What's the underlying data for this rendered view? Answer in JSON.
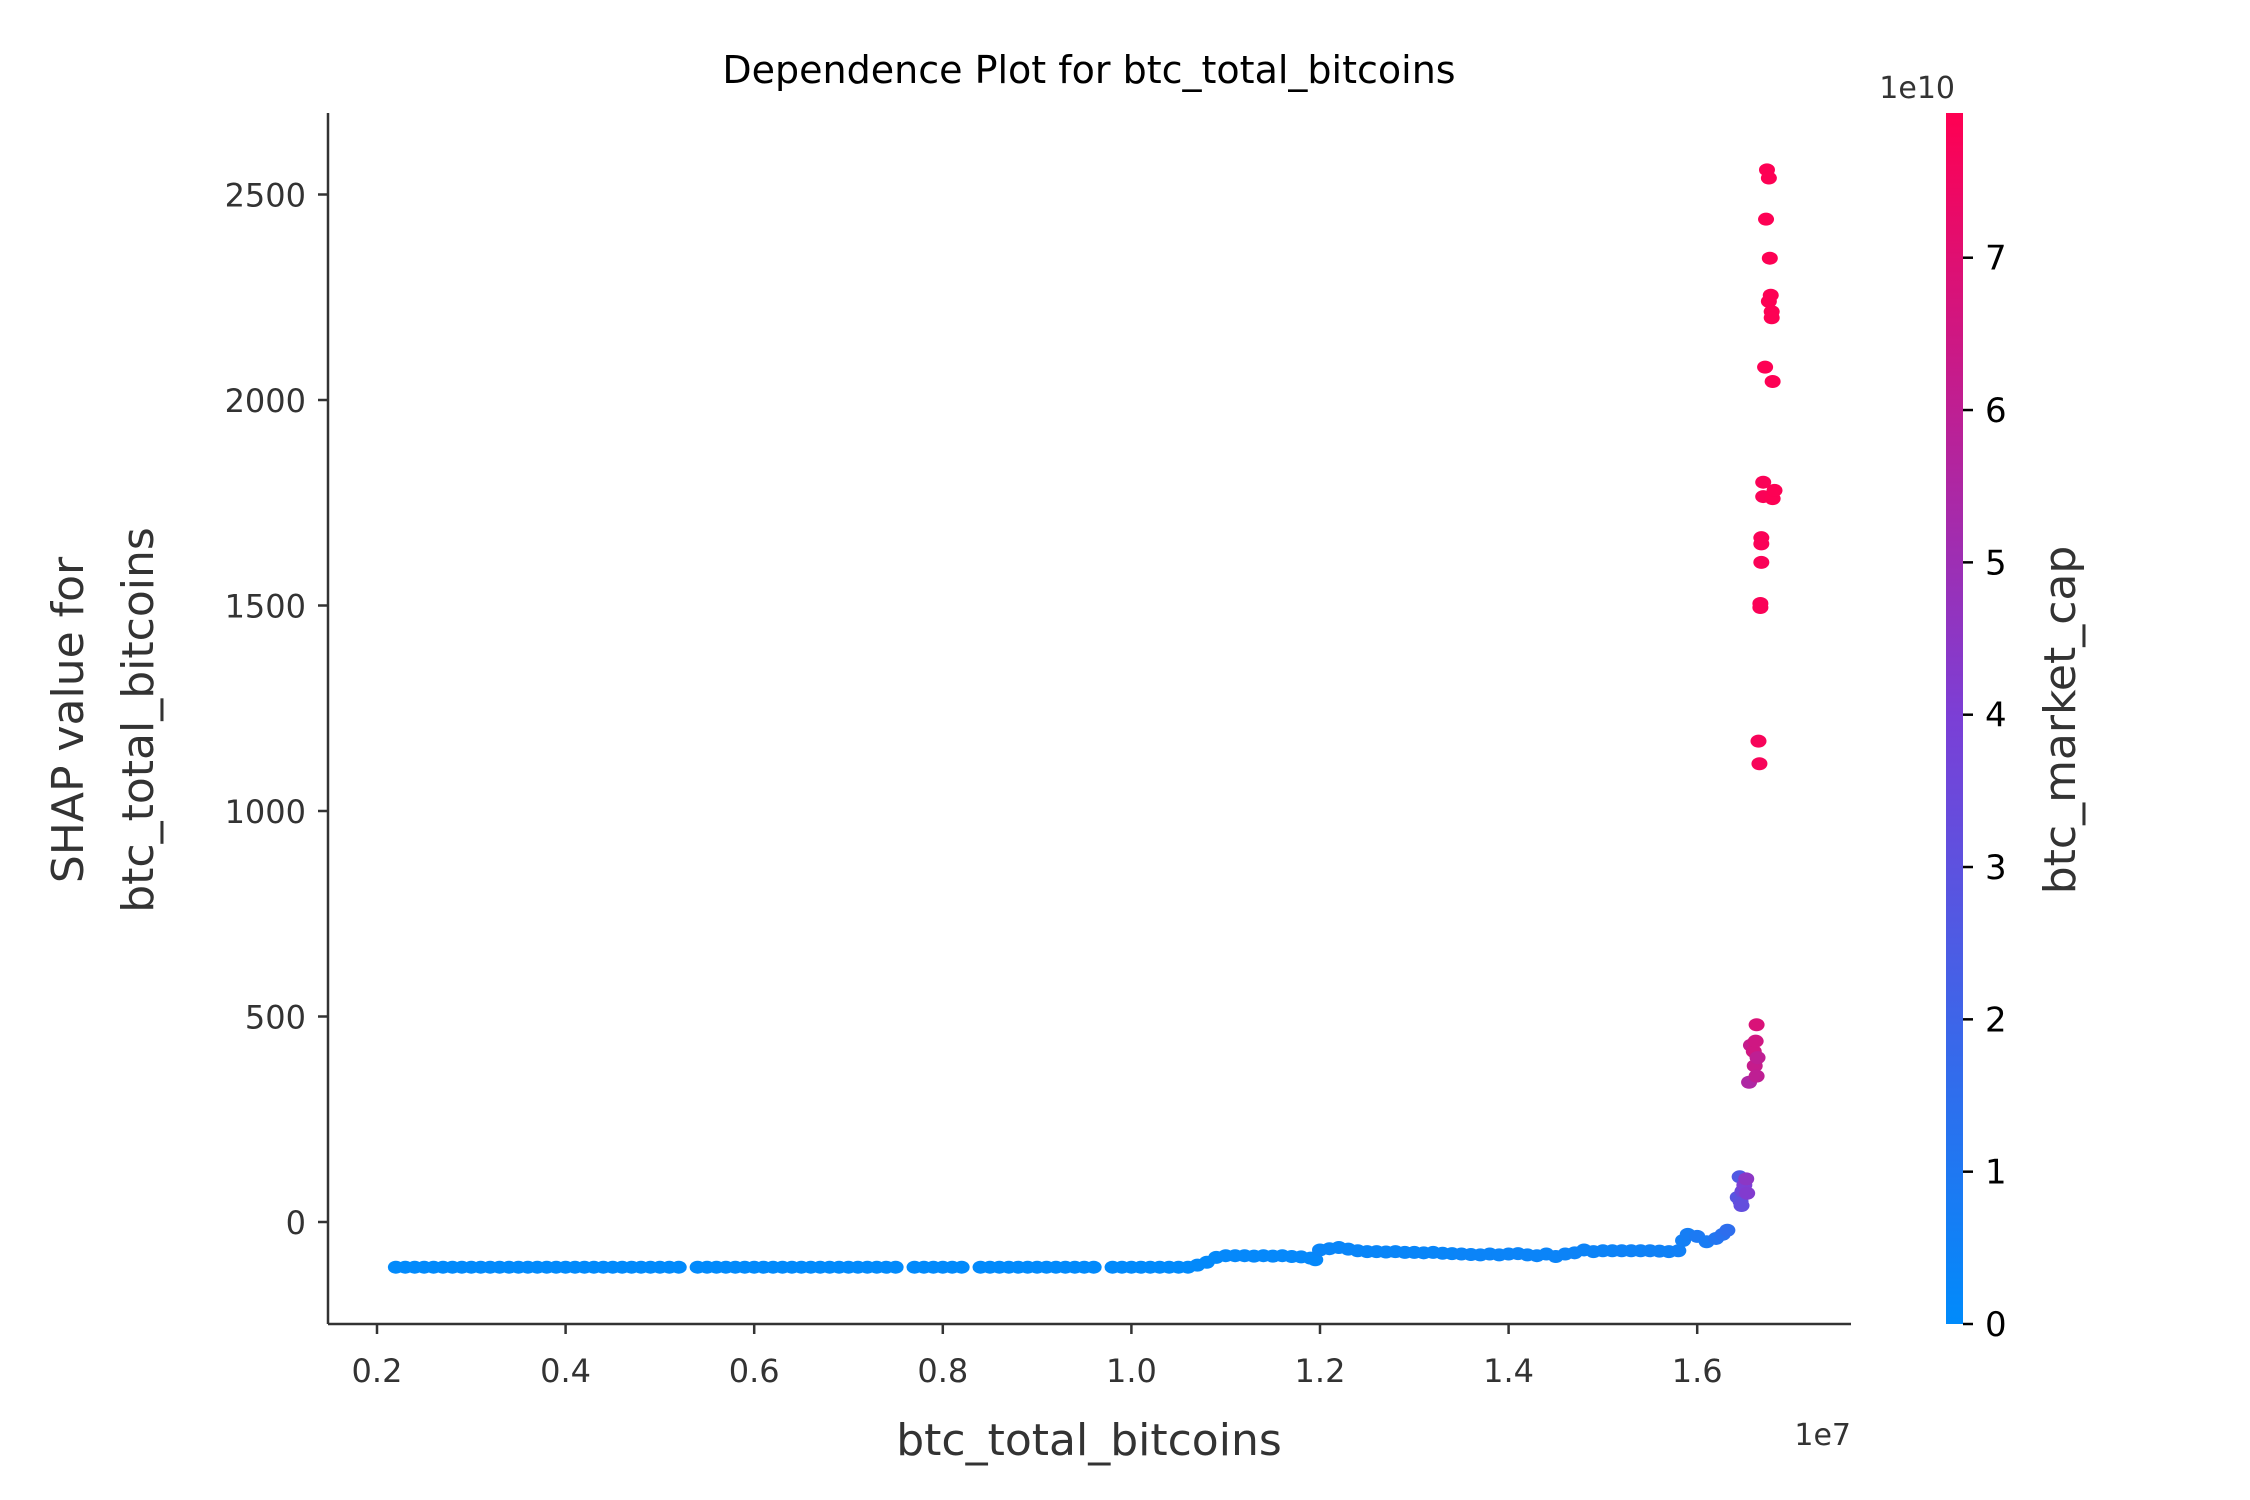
{
  "chart_data": {
    "type": "scatter",
    "title": "Dependence Plot for btc_total_bitcoins",
    "xlabel": "btc_total_bitcoins",
    "ylabel_line1": "SHAP value for",
    "ylabel_line2": "btc_total_bitcoins",
    "x_offset_label": "1e7",
    "xlim": [
      0.15,
      1.76
    ],
    "ylim": [
      -250,
      2700
    ],
    "xticks": [
      0.2,
      0.4,
      0.6,
      0.8,
      1.0,
      1.2,
      1.4,
      1.6
    ],
    "xtick_labels": [
      "0.2",
      "0.4",
      "0.6",
      "0.8",
      "1.0",
      "1.2",
      "1.4",
      "1.6"
    ],
    "yticks": [
      0,
      500,
      1000,
      1500,
      2000,
      2500
    ],
    "ytick_labels": [
      "0",
      "500",
      "1000",
      "1500",
      "2000",
      "2500"
    ],
    "colorbar": {
      "label": "btc_market_cap",
      "offset_label": "1e10",
      "range": [
        0,
        7.95
      ],
      "ticks": [
        0,
        1,
        2,
        3,
        4,
        5,
        6,
        7
      ],
      "tick_labels": [
        "0",
        "1",
        "2",
        "3",
        "4",
        "5",
        "6",
        "7"
      ],
      "colors": [
        "#008bfb",
        "#7b3fd6",
        "#ff0052"
      ]
    },
    "point_format": "[x (1e7), shap_value, btc_market_cap (1e10)]",
    "points": [
      [
        0.22,
        -110,
        0.05
      ],
      [
        0.23,
        -110,
        0.05
      ],
      [
        0.24,
        -110,
        0.05
      ],
      [
        0.25,
        -110,
        0.05
      ],
      [
        0.26,
        -110,
        0.05
      ],
      [
        0.27,
        -110,
        0.05
      ],
      [
        0.28,
        -110,
        0.05
      ],
      [
        0.29,
        -110,
        0.05
      ],
      [
        0.3,
        -110,
        0.05
      ],
      [
        0.31,
        -110,
        0.05
      ],
      [
        0.32,
        -110,
        0.05
      ],
      [
        0.33,
        -110,
        0.05
      ],
      [
        0.34,
        -110,
        0.05
      ],
      [
        0.35,
        -110,
        0.05
      ],
      [
        0.36,
        -110,
        0.05
      ],
      [
        0.37,
        -110,
        0.05
      ],
      [
        0.38,
        -110,
        0.05
      ],
      [
        0.39,
        -110,
        0.05
      ],
      [
        0.4,
        -110,
        0.05
      ],
      [
        0.41,
        -110,
        0.05
      ],
      [
        0.42,
        -110,
        0.05
      ],
      [
        0.43,
        -110,
        0.05
      ],
      [
        0.44,
        -110,
        0.05
      ],
      [
        0.45,
        -110,
        0.05
      ],
      [
        0.46,
        -110,
        0.05
      ],
      [
        0.47,
        -110,
        0.05
      ],
      [
        0.48,
        -110,
        0.05
      ],
      [
        0.49,
        -110,
        0.05
      ],
      [
        0.5,
        -110,
        0.05
      ],
      [
        0.51,
        -110,
        0.05
      ],
      [
        0.52,
        -110,
        0.05
      ],
      [
        0.54,
        -110,
        0.05
      ],
      [
        0.55,
        -110,
        0.05
      ],
      [
        0.56,
        -110,
        0.05
      ],
      [
        0.57,
        -110,
        0.05
      ],
      [
        0.58,
        -110,
        0.05
      ],
      [
        0.59,
        -110,
        0.05
      ],
      [
        0.6,
        -110,
        0.05
      ],
      [
        0.61,
        -110,
        0.05
      ],
      [
        0.62,
        -110,
        0.05
      ],
      [
        0.63,
        -110,
        0.05
      ],
      [
        0.64,
        -110,
        0.05
      ],
      [
        0.65,
        -110,
        0.05
      ],
      [
        0.66,
        -110,
        0.05
      ],
      [
        0.67,
        -110,
        0.05
      ],
      [
        0.68,
        -110,
        0.05
      ],
      [
        0.69,
        -110,
        0.05
      ],
      [
        0.7,
        -110,
        0.05
      ],
      [
        0.71,
        -110,
        0.05
      ],
      [
        0.72,
        -110,
        0.05
      ],
      [
        0.73,
        -110,
        0.05
      ],
      [
        0.74,
        -110,
        0.05
      ],
      [
        0.75,
        -110,
        0.05
      ],
      [
        0.77,
        -110,
        0.05
      ],
      [
        0.78,
        -110,
        0.05
      ],
      [
        0.79,
        -110,
        0.05
      ],
      [
        0.8,
        -110,
        0.05
      ],
      [
        0.81,
        -110,
        0.05
      ],
      [
        0.82,
        -110,
        0.05
      ],
      [
        0.84,
        -110,
        0.05
      ],
      [
        0.85,
        -110,
        0.05
      ],
      [
        0.86,
        -110,
        0.05
      ],
      [
        0.87,
        -110,
        0.05
      ],
      [
        0.88,
        -110,
        0.05
      ],
      [
        0.89,
        -110,
        0.05
      ],
      [
        0.9,
        -110,
        0.05
      ],
      [
        0.91,
        -110,
        0.05
      ],
      [
        0.92,
        -110,
        0.05
      ],
      [
        0.93,
        -110,
        0.05
      ],
      [
        0.94,
        -110,
        0.05
      ],
      [
        0.95,
        -110,
        0.05
      ],
      [
        0.96,
        -110,
        0.05
      ],
      [
        0.98,
        -110,
        0.05
      ],
      [
        0.99,
        -110,
        0.05
      ],
      [
        1.0,
        -110,
        0.05
      ],
      [
        1.01,
        -110,
        0.05
      ],
      [
        1.02,
        -110,
        0.05
      ],
      [
        1.03,
        -110,
        0.05
      ],
      [
        1.04,
        -110,
        0.05
      ],
      [
        1.05,
        -110,
        0.05
      ],
      [
        1.06,
        -110,
        0.05
      ],
      [
        1.07,
        -105,
        0.1
      ],
      [
        1.08,
        -98,
        0.1
      ],
      [
        1.09,
        -86,
        0.1
      ],
      [
        1.1,
        -82,
        0.15
      ],
      [
        1.11,
        -82,
        0.15
      ],
      [
        1.12,
        -82,
        0.15
      ],
      [
        1.13,
        -83,
        0.15
      ],
      [
        1.14,
        -82,
        0.15
      ],
      [
        1.15,
        -83,
        0.15
      ],
      [
        1.16,
        -82,
        0.15
      ],
      [
        1.17,
        -84,
        0.15
      ],
      [
        1.18,
        -85,
        0.15
      ],
      [
        1.19,
        -88,
        0.15
      ],
      [
        1.195,
        -92,
        0.15
      ],
      [
        1.2,
        -68,
        0.3
      ],
      [
        1.21,
        -65,
        0.3
      ],
      [
        1.22,
        -62,
        0.3
      ],
      [
        1.23,
        -66,
        0.3
      ],
      [
        1.24,
        -70,
        0.3
      ],
      [
        1.25,
        -72,
        0.3
      ],
      [
        1.26,
        -72,
        0.3
      ],
      [
        1.27,
        -73,
        0.3
      ],
      [
        1.28,
        -72,
        0.3
      ],
      [
        1.29,
        -74,
        0.3
      ],
      [
        1.3,
        -74,
        0.3
      ],
      [
        1.31,
        -75,
        0.3
      ],
      [
        1.32,
        -74,
        0.3
      ],
      [
        1.33,
        -76,
        0.3
      ],
      [
        1.34,
        -77,
        0.3
      ],
      [
        1.35,
        -78,
        0.35
      ],
      [
        1.36,
        -79,
        0.35
      ],
      [
        1.37,
        -80,
        0.35
      ],
      [
        1.38,
        -78,
        0.35
      ],
      [
        1.39,
        -80,
        0.35
      ],
      [
        1.4,
        -78,
        0.35
      ],
      [
        1.41,
        -77,
        0.35
      ],
      [
        1.42,
        -80,
        0.35
      ],
      [
        1.43,
        -82,
        0.35
      ],
      [
        1.44,
        -78,
        0.35
      ],
      [
        1.45,
        -84,
        0.35
      ],
      [
        1.46,
        -78,
        0.4
      ],
      [
        1.47,
        -75,
        0.4
      ],
      [
        1.48,
        -68,
        0.4
      ],
      [
        1.49,
        -72,
        0.4
      ],
      [
        1.5,
        -70,
        0.4
      ],
      [
        1.51,
        -70,
        0.4
      ],
      [
        1.52,
        -70,
        0.45
      ],
      [
        1.53,
        -70,
        0.45
      ],
      [
        1.54,
        -70,
        0.45
      ],
      [
        1.55,
        -70,
        0.5
      ],
      [
        1.56,
        -71,
        0.5
      ],
      [
        1.57,
        -72,
        0.5
      ],
      [
        1.58,
        -70,
        0.55
      ],
      [
        1.585,
        -45,
        0.6
      ],
      [
        1.59,
        -30,
        0.7
      ],
      [
        1.6,
        -35,
        0.9
      ],
      [
        1.61,
        -48,
        0.8
      ],
      [
        1.62,
        -40,
        1.1
      ],
      [
        1.627,
        -30,
        1.3
      ],
      [
        1.632,
        -20,
        1.5
      ],
      [
        1.643,
        60,
        2.8
      ],
      [
        1.645,
        110,
        2.6
      ],
      [
        1.646,
        50,
        3.0
      ],
      [
        1.647,
        40,
        3.2
      ],
      [
        1.648,
        75,
        3.5
      ],
      [
        1.65,
        90,
        4.0
      ],
      [
        1.652,
        105,
        4.5
      ],
      [
        1.653,
        70,
        4.2
      ],
      [
        1.655,
        340,
        5.5
      ],
      [
        1.657,
        430,
        6.2
      ],
      [
        1.66,
        415,
        6.5
      ],
      [
        1.661,
        380,
        6.2
      ],
      [
        1.662,
        440,
        6.5
      ],
      [
        1.663,
        355,
        6.0
      ],
      [
        1.663,
        480,
        6.8
      ],
      [
        1.664,
        400,
        6.0
      ],
      [
        1.665,
        1170,
        7.7
      ],
      [
        1.666,
        1115,
        7.7
      ],
      [
        1.667,
        1505,
        7.8
      ],
      [
        1.667,
        1495,
        7.8
      ],
      [
        1.668,
        1665,
        7.8
      ],
      [
        1.668,
        1650,
        7.8
      ],
      [
        1.668,
        1605,
        7.8
      ],
      [
        1.67,
        1800,
        7.8
      ],
      [
        1.67,
        1765,
        7.8
      ],
      [
        1.672,
        2080,
        7.9
      ],
      [
        1.673,
        2440,
        7.9
      ],
      [
        1.674,
        2560,
        7.9
      ],
      [
        1.676,
        2540,
        7.9
      ],
      [
        1.676,
        2240,
        7.9
      ],
      [
        1.677,
        2345,
        7.9
      ],
      [
        1.678,
        2255,
        7.9
      ],
      [
        1.679,
        2215,
        7.9
      ],
      [
        1.679,
        2200,
        7.9
      ],
      [
        1.68,
        2045,
        7.9
      ],
      [
        1.68,
        1760,
        7.9
      ],
      [
        1.682,
        1780,
        7.9
      ]
    ]
  }
}
